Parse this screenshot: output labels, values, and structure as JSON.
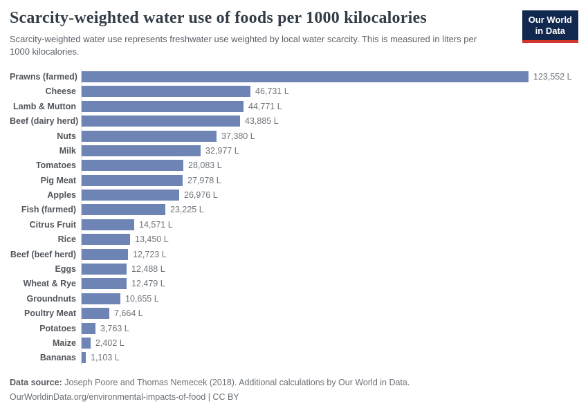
{
  "header": {
    "title": "Scarcity-weighted water use of foods per 1000 kilocalories",
    "subtitle": "Scarcity-weighted water use represents freshwater use weighted by local water scarcity. This is measured in liters per 1000 kilocalories.",
    "logo_line1": "Our World",
    "logo_line2": "in Data",
    "logo_bg_color": "#12294f",
    "logo_stripe_color": "#d2352c"
  },
  "chart_data": {
    "type": "bar",
    "orientation": "horizontal",
    "title": "Scarcity-weighted water use of foods per 1000 kilocalories",
    "xlabel": "",
    "ylabel": "",
    "xlim": [
      0,
      123552
    ],
    "grid": false,
    "unit": "liters per 1000 kilocalories",
    "bar_color": "#6d84b4",
    "categories": [
      "Prawns (farmed)",
      "Cheese",
      "Lamb & Mutton",
      "Beef (dairy herd)",
      "Nuts",
      "Milk",
      "Tomatoes",
      "Pig Meat",
      "Apples",
      "Fish (farmed)",
      "Citrus Fruit",
      "Rice",
      "Beef (beef herd)",
      "Eggs",
      "Wheat & Rye",
      "Groundnuts",
      "Poultry Meat",
      "Potatoes",
      "Maize",
      "Bananas"
    ],
    "values": [
      123552,
      46731,
      44771,
      43885,
      37380,
      32977,
      28083,
      27978,
      26976,
      23225,
      14571,
      13450,
      12723,
      12488,
      12479,
      10655,
      7664,
      3763,
      2402,
      1103
    ],
    "value_labels": [
      "123,552 L",
      "46,731 L",
      "44,771 L",
      "43,885 L",
      "37,380 L",
      "32,977 L",
      "28,083 L",
      "27,978 L",
      "26,976 L",
      "23,225 L",
      "14,571 L",
      "13,450 L",
      "12,723 L",
      "12,488 L",
      "12,479 L",
      "10,655 L",
      "7,664 L",
      "3,763 L",
      "2,402 L",
      "1,103 L"
    ]
  },
  "footer": {
    "datasource_label": "Data source:",
    "datasource_text": " Joseph Poore and Thomas Nemecek (2018). Additional calculations by Our World in Data.",
    "url_line": "OurWorldinData.org/environmental-impacts-of-food | CC BY"
  }
}
